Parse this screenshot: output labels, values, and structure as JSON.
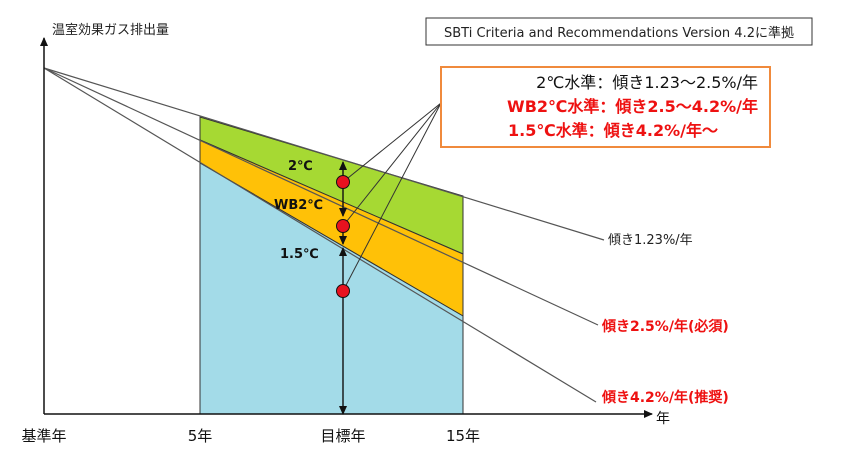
{
  "axes": {
    "y_label": "温室効果ガス排出量",
    "x_unit": "年",
    "x_ticks": [
      "基準年",
      "5年",
      "目標年",
      "15年"
    ]
  },
  "criteria_note": "SBTi Criteria and Recommendations Version 4.2に準拠",
  "legend": {
    "rows": [
      {
        "level": "2℃水準",
        "sep": "：",
        "slope": "傾き1.23～2.5%/年"
      },
      {
        "level": "WB2℃水準",
        "sep": "：",
        "slope": "傾き2.5～4.2%/年"
      },
      {
        "level": "1.5℃水準",
        "sep": "：",
        "slope": "傾き4.2%/年～"
      }
    ]
  },
  "line_labels": {
    "slope_123": "傾き1.23%/年",
    "slope_25": "傾き2.5%/年(必須)",
    "slope_42": "傾き4.2%/年(推奨)"
  },
  "band_labels": {
    "two_c": "2℃",
    "wb2c": "WB2℃",
    "one_five_c": "1.5℃"
  },
  "colors": {
    "green": "#a6d933",
    "orange": "#ffc107",
    "blue": "#a3dbe8",
    "red": "#e8121f",
    "legend_border": "#f08a3c"
  }
}
